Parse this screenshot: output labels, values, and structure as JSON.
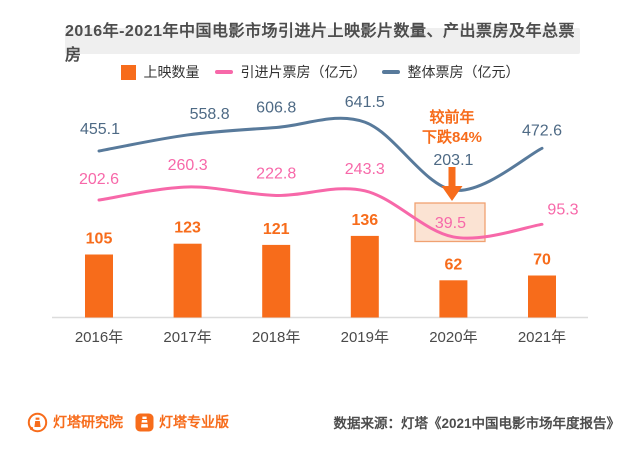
{
  "title": "2016年-2021年中国电影市场引进片上映影片数量、产出票房及年总票房",
  "legend": [
    {
      "label": "上映数量",
      "type": "bar",
      "color": "#f76c1b"
    },
    {
      "label": "引进片票房（亿元）",
      "type": "line",
      "color": "#f768a9"
    },
    {
      "label": "整体票房（亿元）",
      "type": "line",
      "color": "#587a9b"
    }
  ],
  "annotation": {
    "line1": "较前年",
    "line2": "下跌84%"
  },
  "footer": {
    "logo1": "灯塔研究院",
    "logo2": "灯塔专业版",
    "source": "数据来源：灯塔《2021中国电影市场年度报告》"
  },
  "colors": {
    "orange": "#f76c1b",
    "pink": "#f768a9",
    "blue": "#587a9b",
    "title_bg": "#efefef",
    "highlight_fill": "#fbe3d3",
    "highlight_border": "#f0a171",
    "axis": "#dcdcdc",
    "text_dark": "#4d4d4d"
  },
  "chart_data": {
    "type": "bar",
    "title": "2016年-2021年中国电影市场引进片上映影片数量、产出票房及年总票房",
    "categories": [
      "2016年",
      "2017年",
      "2018年",
      "2019年",
      "2020年",
      "2021年"
    ],
    "series": [
      {
        "name": "上映数量",
        "type": "bar",
        "color": "#f76c1b",
        "values": [
          105,
          123,
          121,
          136,
          62,
          70
        ]
      },
      {
        "name": "引进片票房（亿元）",
        "type": "line",
        "color": "#f768a9",
        "values": [
          202.6,
          260.3,
          222.8,
          243.3,
          39.5,
          95.3
        ]
      },
      {
        "name": "整体票房（亿元）",
        "type": "line",
        "color": "#587a9b",
        "values": [
          455.1,
          558.8,
          606.8,
          641.5,
          203.1,
          472.6
        ]
      }
    ],
    "highlight": {
      "series": "引进片票房（亿元）",
      "category": "2020年",
      "value": 39.5
    },
    "annotation_text": "较前年下跌84%",
    "legend_position": "top",
    "grid": false
  }
}
